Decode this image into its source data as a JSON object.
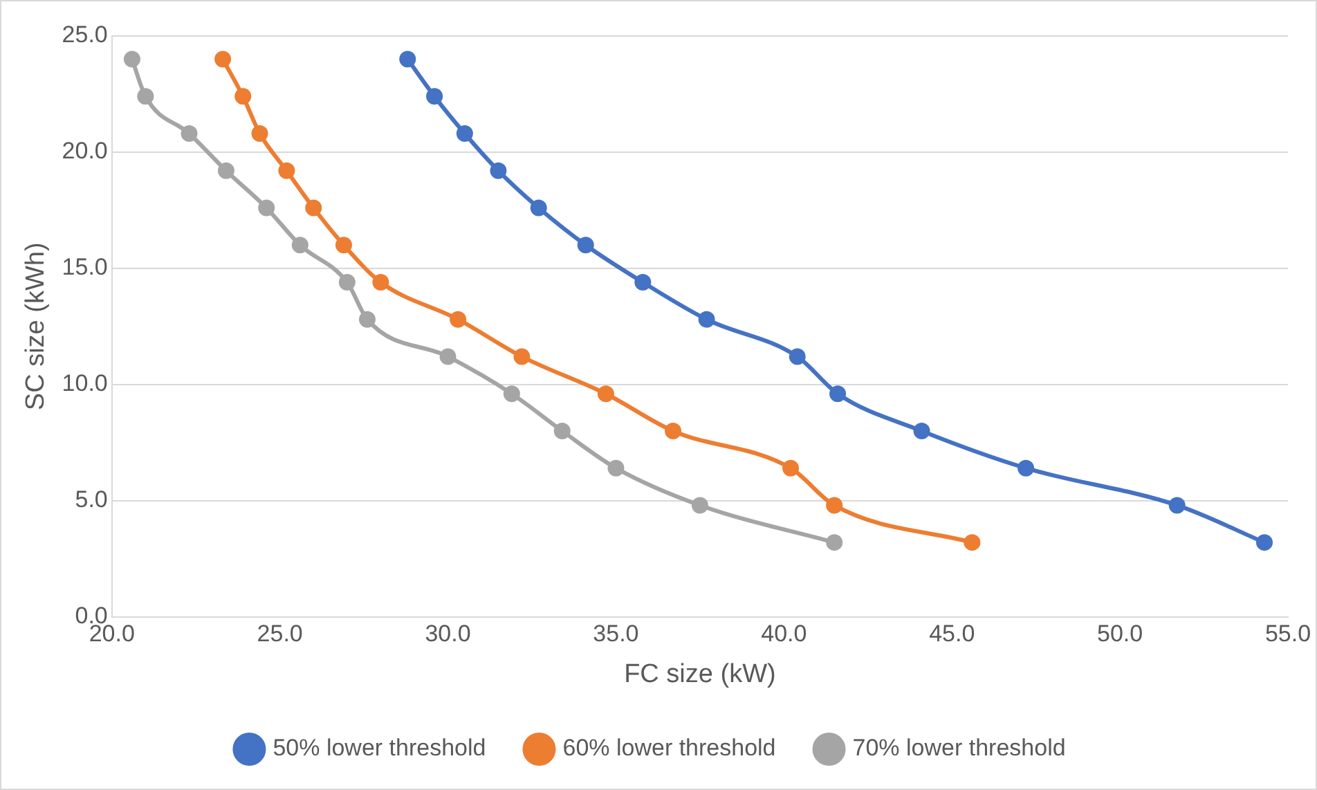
{
  "chart_data": {
    "type": "line",
    "xlabel": "FC size (kW)",
    "ylabel": "SC size (kWh)",
    "xlim": [
      20,
      55
    ],
    "xticks": [
      {
        "value": 20,
        "label": "20.0"
      },
      {
        "value": 25,
        "label": "25.0"
      },
      {
        "value": 30,
        "label": "30.0"
      },
      {
        "value": 35,
        "label": "35.0"
      },
      {
        "value": 40,
        "label": "40.0"
      },
      {
        "value": 45,
        "label": "45.0"
      },
      {
        "value": 50,
        "label": "50.0"
      },
      {
        "value": 55,
        "label": "55.0"
      }
    ],
    "ylim": [
      0,
      25
    ],
    "yticks": [
      {
        "value": 0,
        "label": "0.0"
      },
      {
        "value": 5,
        "label": "5.0"
      },
      {
        "value": 10,
        "label": "10.0"
      },
      {
        "value": 15,
        "label": "15.0"
      },
      {
        "value": 20,
        "label": "20.0"
      },
      {
        "value": 25,
        "label": "25.0"
      }
    ],
    "grid": "y",
    "legend": "bottom",
    "marker": "circle",
    "line_style": "solid",
    "series": [
      {
        "name": "50% lower threshold",
        "color": "#4472c4",
        "x": [
          28.8,
          29.6,
          30.5,
          31.5,
          32.7,
          34.1,
          35.8,
          37.7,
          40.4,
          41.6,
          44.1,
          47.2,
          51.7,
          54.3
        ],
        "values": [
          24,
          22.4,
          20.8,
          19.2,
          17.6,
          16,
          14.4,
          12.8,
          11.2,
          9.6,
          8,
          6.4,
          4.8,
          3.2
        ]
      },
      {
        "name": "60% lower threshold",
        "color": "#ed7d31",
        "x": [
          23.3,
          23.9,
          24.4,
          25.2,
          26.0,
          26.9,
          28.0,
          30.3,
          32.2,
          34.7,
          36.7,
          40.2,
          41.5,
          45.6
        ],
        "values": [
          24,
          22.4,
          20.8,
          19.2,
          17.6,
          16,
          14.4,
          12.8,
          11.2,
          9.6,
          8,
          6.4,
          4.8,
          3.2
        ]
      },
      {
        "name": "70% lower threshold",
        "color": "#a5a5a5",
        "x": [
          20.6,
          21.0,
          22.3,
          23.4,
          24.6,
          25.6,
          27.0,
          27.6,
          30.0,
          31.9,
          33.4,
          35.0,
          37.5,
          41.5
        ],
        "values": [
          24,
          22.4,
          20.8,
          19.2,
          17.6,
          16,
          14.4,
          12.8,
          11.2,
          9.6,
          8,
          6.4,
          4.8,
          3.2
        ]
      }
    ]
  }
}
